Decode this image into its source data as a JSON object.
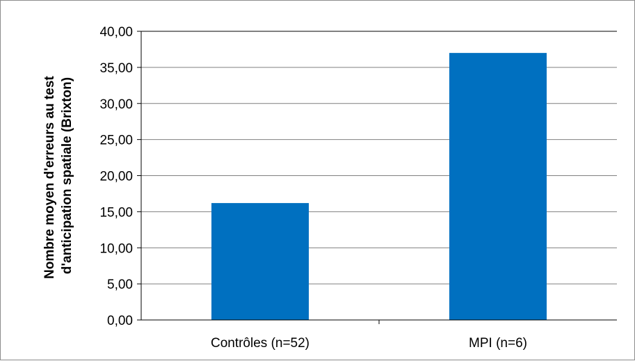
{
  "chart_data": {
    "type": "bar",
    "categories": [
      "Contrôles (n=52)",
      "MPI (n=6)"
    ],
    "values": [
      16.2,
      37.0
    ],
    "ylabel": [
      "Nombre moyen d'erreurs au test",
      "d'anticipation spatiale (Brixton)"
    ],
    "ylim": [
      0,
      40
    ],
    "ytick_step": 5,
    "ytick_labels": [
      "0,00",
      "5,00",
      "10,00",
      "15,00",
      "20,00",
      "25,00",
      "30,00",
      "35,00",
      "40,00"
    ],
    "grid": true,
    "legend": "none",
    "bar_color": "#0070C0",
    "grid_color": "#7f7f7f"
  }
}
